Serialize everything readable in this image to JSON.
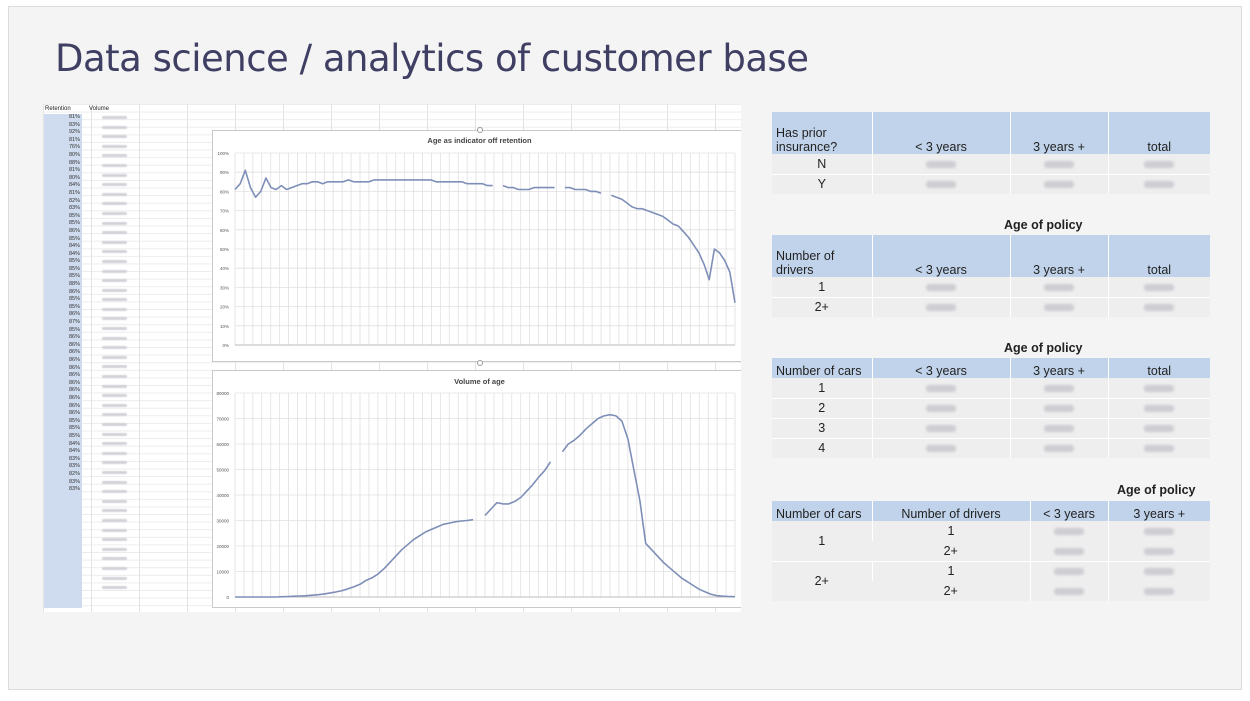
{
  "slide": {
    "title": "Data science / analytics of customer base"
  },
  "spreadsheet": {
    "headers": {
      "retention": "Retention",
      "volume": "Volume"
    },
    "retention_values": [
      "81%",
      "83%",
      "92%",
      "81%",
      "76%",
      "80%",
      "88%",
      "81%",
      "80%",
      "84%",
      "81%",
      "82%",
      "83%",
      "85%",
      "85%",
      "86%",
      "85%",
      "84%",
      "84%",
      "85%",
      "85%",
      "85%",
      "88%",
      "86%",
      "85%",
      "85%",
      "86%",
      "87%",
      "85%",
      "86%",
      "86%",
      "86%",
      "86%",
      "86%",
      "86%",
      "86%",
      "86%",
      "86%",
      "86%",
      "86%",
      "85%",
      "85%",
      "85%",
      "84%",
      "84%",
      "83%",
      "83%",
      "82%",
      "83%",
      "83%"
    ]
  },
  "charts": [
    {
      "id": "retention",
      "title": "Age as indicator off retention",
      "y_ticks": [
        "0%",
        "10%",
        "20%",
        "30%",
        "40%",
        "50%",
        "60%",
        "70%",
        "80%",
        "90%",
        "100%"
      ],
      "colors": {
        "line": "#7e8fb7",
        "grid": "#e0e0e0"
      }
    },
    {
      "id": "volume",
      "title": "Volume of age",
      "y_ticks": [
        "0",
        "10000",
        "20000",
        "30000",
        "40000",
        "50000",
        "60000",
        "70000",
        "80000"
      ],
      "colors": {
        "line": "#7e8fb7",
        "grid": "#e0e0e0"
      }
    }
  ],
  "chart_data": [
    {
      "type": "line",
      "title": "Age as indicator off retention",
      "ylim": [
        0,
        100
      ],
      "segments": [
        [
          81,
          84,
          91,
          82,
          77,
          80,
          87,
          82,
          81,
          83,
          81,
          82,
          83,
          84,
          84,
          85,
          85,
          84,
          85,
          85,
          85,
          85,
          86,
          85,
          85,
          85,
          85,
          86,
          86,
          86,
          86,
          86,
          86,
          86,
          86,
          86,
          86,
          86,
          86,
          85,
          85,
          85,
          85,
          85,
          85,
          84,
          84,
          84,
          84,
          83,
          83
        ],
        [
          83,
          82,
          82,
          81,
          81,
          81,
          82,
          82,
          82,
          82,
          82
        ],
        [
          82,
          82,
          81,
          81,
          81,
          80,
          80,
          79
        ],
        [
          78,
          77,
          76,
          74,
          72,
          71,
          71,
          70,
          69,
          68,
          67,
          65,
          63,
          62,
          59,
          56,
          52,
          48,
          42,
          34,
          50,
          48,
          44,
          38,
          22
        ]
      ]
    },
    {
      "type": "line",
      "title": "Volume of age",
      "ylim": [
        0,
        80000
      ],
      "segments": [
        [
          0,
          0,
          0,
          0,
          0,
          0,
          0,
          0,
          100,
          200,
          300,
          400,
          500,
          700,
          900,
          1200,
          1600,
          2000,
          2500,
          3200,
          4000,
          5000,
          6500,
          7500,
          9000,
          11000,
          13500,
          16000,
          18500,
          20500,
          22500,
          24000,
          25500,
          26500,
          27500,
          28500,
          29000,
          29500,
          29800,
          30000,
          30300
        ],
        [
          32000,
          34500,
          37000,
          36500,
          36500,
          37500,
          39000,
          41500,
          44000,
          47000,
          49500,
          53000
        ],
        [
          57000,
          60000,
          61500,
          63500,
          66000,
          68000,
          70000,
          71000,
          71500,
          71000,
          69000,
          62000,
          50000,
          38000,
          21000,
          18500,
          16000,
          13500,
          11500,
          9500,
          7500,
          6000,
          4500,
          3000,
          2000,
          1000,
          500,
          300,
          200,
          100
        ]
      ]
    }
  ],
  "tables": {
    "prior_insurance": {
      "header": [
        "Has prior insurance?",
        "< 3 years",
        "3 years +",
        "total"
      ],
      "rows": [
        [
          "N",
          "",
          "",
          ""
        ],
        [
          "Y",
          "",
          "",
          ""
        ]
      ]
    },
    "drivers": {
      "caption": "Age of policy",
      "header": [
        "Number of drivers",
        "< 3 years",
        "3 years +",
        "total"
      ],
      "rows": [
        [
          "1",
          "",
          "",
          ""
        ],
        [
          "2+",
          "",
          "",
          ""
        ]
      ]
    },
    "cars": {
      "caption": "Age of policy",
      "header": [
        "Number of cars",
        "< 3 years",
        "3 years +",
        "total"
      ],
      "rows": [
        [
          "1",
          "",
          "",
          ""
        ],
        [
          "2",
          "",
          "",
          ""
        ],
        [
          "3",
          "",
          "",
          ""
        ],
        [
          "4",
          "",
          "",
          ""
        ]
      ]
    },
    "cars_drivers": {
      "caption": "Age of policy",
      "header": [
        "Number of cars",
        "Number of drivers",
        "< 3 years",
        "3 years +"
      ],
      "groups": [
        {
          "cars": "1",
          "drivers": [
            "1",
            "2+"
          ]
        },
        {
          "cars": "2+",
          "drivers": [
            "1",
            "2+"
          ]
        }
      ]
    }
  }
}
